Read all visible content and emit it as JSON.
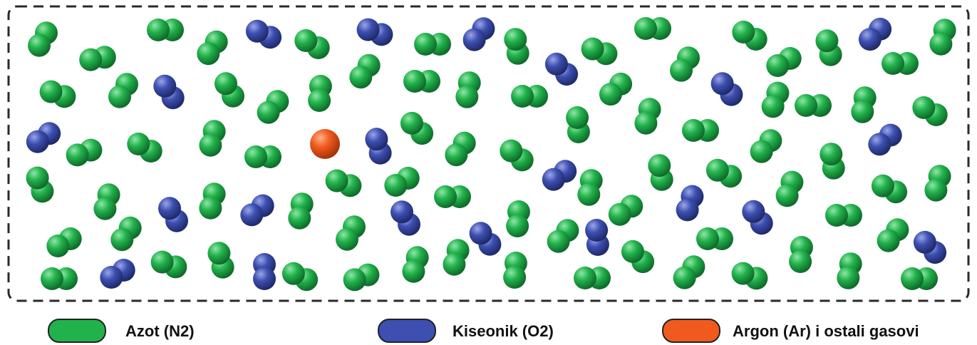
{
  "diagram": {
    "legend": [
      {
        "key": "n2",
        "label": "Azot (N2)",
        "color": "#22b24c",
        "shade": "#0e6b2a",
        "highlight": "#8fe6a6"
      },
      {
        "key": "o2",
        "label": "Kiseonik (O2)",
        "color": "#3d4fb0",
        "shade": "#1f2a6b",
        "highlight": "#9aa6e8"
      },
      {
        "key": "ar",
        "label": "Argon (Ar) i ostali gasovi",
        "color": "#f05a1e",
        "shade": "#a8340a",
        "highlight": "#ffb08a"
      }
    ],
    "molecule_counts": {
      "n2": 112,
      "o2": 20,
      "ar": 1
    }
  }
}
